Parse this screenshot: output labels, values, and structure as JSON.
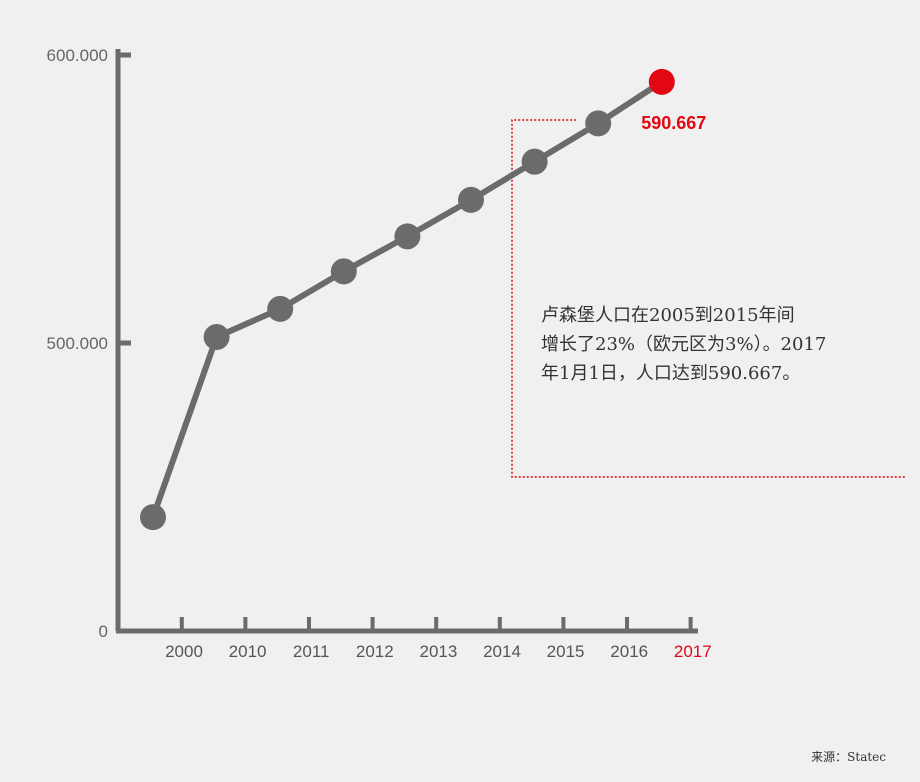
{
  "chart_data": {
    "type": "line",
    "x": [
      "2000",
      "2010",
      "2011",
      "2012",
      "2013",
      "2014",
      "2015",
      "2016",
      "2017"
    ],
    "values": [
      439539,
      502066,
      511840,
      524853,
      537039,
      549680,
      562958,
      576249,
      590667
    ],
    "y_ticks": [
      {
        "value": 600000,
        "label": "600.000"
      },
      {
        "value": 500000,
        "label": "500.000"
      },
      {
        "value": 0,
        "label": "0"
      }
    ],
    "y_axis_note": "axis is broken: 0 at bottom, 500.000 and 600.000 on a compressed upper scale",
    "highlight": {
      "category": "2017",
      "label": "590.667",
      "color": "#e30613"
    },
    "line_color": "#6b6b6b",
    "axis_color": "#6b6b6b",
    "annotation_color": "#e30613",
    "grid": false
  },
  "annotation": {
    "lines": [
      "卢森堡人口在2005到2015年间",
      "增长了23%（欧元区为3%）。2017",
      "年1月1日，人口达到590.667。"
    ]
  },
  "source": "来源：Statec"
}
